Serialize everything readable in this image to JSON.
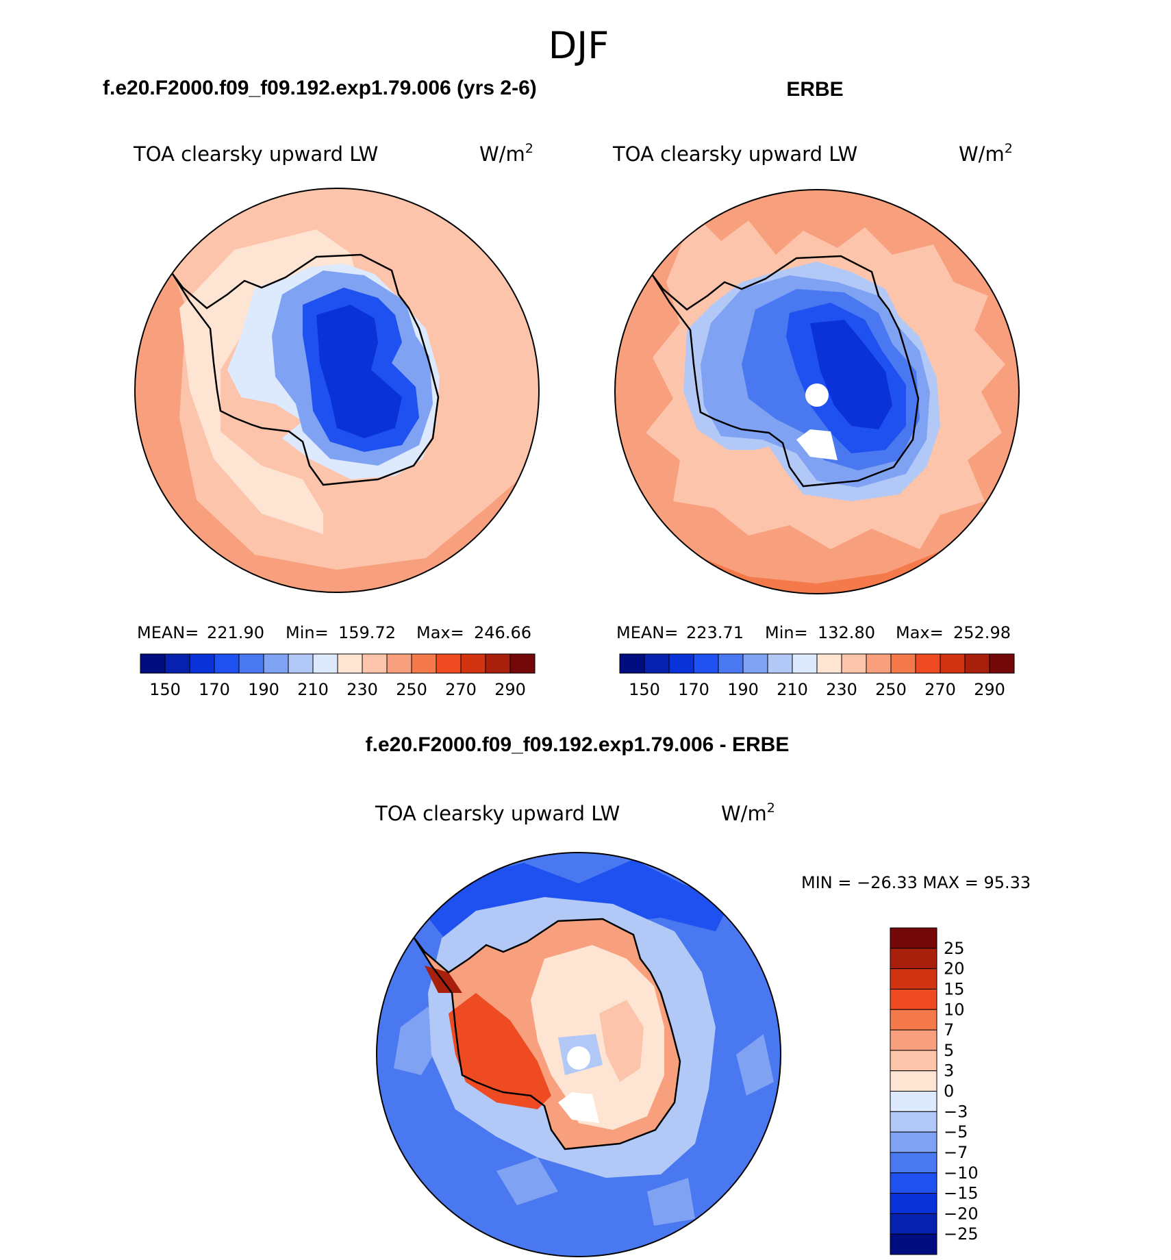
{
  "figure_title": "DJF",
  "chart_data": [
    {
      "type": "contour-map",
      "title": "f.e20.F2000.f09_f09.192.exp1.79.006 (yrs 2-6)",
      "subtitle": "TOA clearsky upward LW",
      "units_base": "W/m",
      "units_exp": "2",
      "stats": {
        "mean_label": "MEAN=",
        "mean": "221.90",
        "min_label": "Min=",
        "min": "159.72",
        "max_label": "Max=",
        "max": "246.66"
      },
      "levels": [
        150,
        160,
        170,
        180,
        190,
        200,
        210,
        220,
        230,
        240,
        250,
        260,
        270,
        280,
        290
      ],
      "tick_labels": [
        "150",
        "170",
        "190",
        "210",
        "230",
        "250",
        "270",
        "290"
      ],
      "colors": [
        "#000d80",
        "#0521ad",
        "#0a32d9",
        "#1f50f0",
        "#4a78f0",
        "#7fa2f3",
        "#b2c9f8",
        "#dde9fc",
        "#fde4d3",
        "#fcc4ab",
        "#f8a07d",
        "#f47a4c",
        "#ee4b22",
        "#d23412",
        "#a8200c",
        "#740808"
      ]
    },
    {
      "type": "contour-map",
      "title": "ERBE",
      "subtitle": "TOA clearsky upward LW",
      "units_base": "W/m",
      "units_exp": "2",
      "stats": {
        "mean_label": "MEAN=",
        "mean": "223.71",
        "min_label": "Min=",
        "min": "132.80",
        "max_label": "Max=",
        "max": "252.98"
      },
      "levels": [
        150,
        160,
        170,
        180,
        190,
        200,
        210,
        220,
        230,
        240,
        250,
        260,
        270,
        280,
        290
      ],
      "tick_labels": [
        "150",
        "170",
        "190",
        "210",
        "230",
        "250",
        "270",
        "290"
      ],
      "colors": [
        "#000d80",
        "#0521ad",
        "#0a32d9",
        "#1f50f0",
        "#4a78f0",
        "#7fa2f3",
        "#b2c9f8",
        "#dde9fc",
        "#fde4d3",
        "#fcc4ab",
        "#f8a07d",
        "#f47a4c",
        "#ee4b22",
        "#d23412",
        "#a8200c",
        "#740808"
      ]
    },
    {
      "type": "contour-map",
      "title": "f.e20.F2000.f09_f09.192.exp1.79.006 - ERBE",
      "subtitle": "TOA clearsky upward LW",
      "units_base": "W/m",
      "units_exp": "2",
      "minmax_text": "MIN = −26.33 MAX =   95.33",
      "levels": [
        25,
        20,
        15,
        10,
        7,
        5,
        3,
        0,
        -3,
        -5,
        -7,
        -10,
        -15,
        -20,
        -25
      ],
      "tick_labels": [
        "25",
        "20",
        "15",
        "10",
        "7",
        "5",
        "3",
        "0",
        "−3",
        "−5",
        "−7",
        "−10",
        "−15",
        "−20",
        "−25"
      ],
      "colors": [
        "#740808",
        "#a8200c",
        "#d23412",
        "#ee4b22",
        "#f47a4c",
        "#f8a07d",
        "#fcc4ab",
        "#fde4d3",
        "#dde9fc",
        "#b2c9f8",
        "#7fa2f3",
        "#4a78f0",
        "#1f50f0",
        "#0a32d9",
        "#0521ad",
        "#000d80"
      ]
    }
  ]
}
